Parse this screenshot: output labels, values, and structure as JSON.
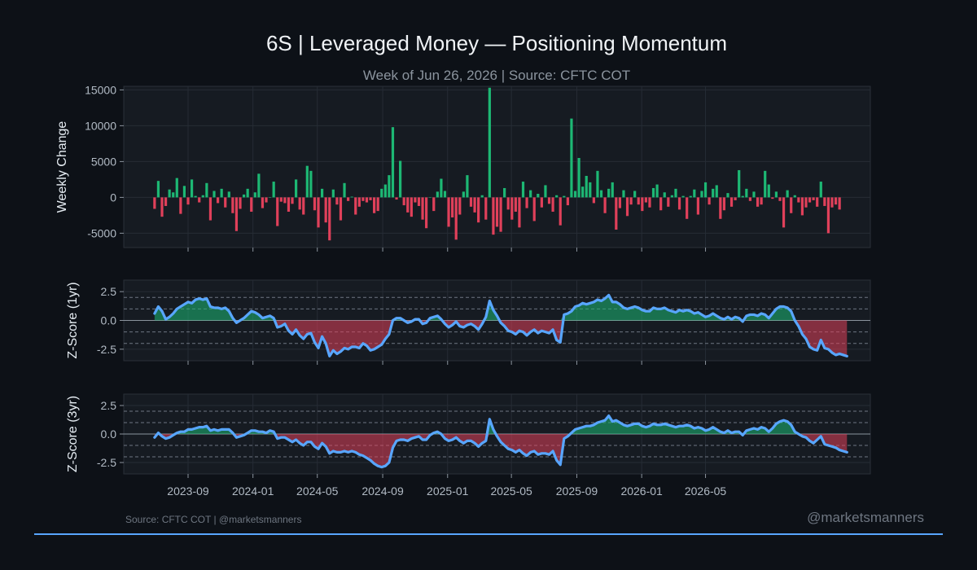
{
  "header": {
    "title": "6S | Leveraged Money — Positioning Momentum",
    "subtitle": "Week of Jun 26, 2026 | Source: CFTC COT"
  },
  "footer": {
    "source": "Source: CFTC COT | @marketsmanners",
    "watermark": "@marketsmanners"
  },
  "colors": {
    "background": "#0d1117",
    "panel": "#161b22",
    "positive": "#1db874",
    "negative": "#e0405a",
    "line": "#58a6ff"
  },
  "chart_data": [
    {
      "type": "bar",
      "ylabel": "Weekly Change",
      "ylim": [
        -7000,
        15500
      ],
      "yticks": [
        15000,
        10000,
        5000,
        0,
        -5000
      ],
      "ytick_labels": [
        "15000",
        "10000",
        "5000",
        "0",
        "-5000"
      ],
      "x_start": "2023-06-30",
      "x_step_days": 7,
      "values": [
        -1600,
        2300,
        -2700,
        -1200,
        1100,
        700,
        2700,
        -2300,
        1600,
        -1000,
        2500,
        200,
        -700,
        300,
        2000,
        -3200,
        900,
        -800,
        1200,
        -1400,
        800,
        -2200,
        -4700,
        -1600,
        400,
        1200,
        -2000,
        700,
        3300,
        -1500,
        -700,
        0,
        2200,
        -4000,
        -600,
        -800,
        -2000,
        -900,
        2500,
        -1700,
        -2400,
        4400,
        3700,
        -1800,
        -4200,
        1200,
        -3500,
        -6000,
        1100,
        -1000,
        -3200,
        2000,
        -500,
        100,
        -2400,
        -1300,
        -500,
        -700,
        -400,
        -2200,
        -1900,
        1200,
        1800,
        3100,
        9800,
        -300,
        5100,
        -1100,
        -2100,
        -2700,
        -700,
        -1200,
        -3100,
        -4300,
        0,
        -1900,
        800,
        2600,
        900,
        -4100,
        -2800,
        -5900,
        -2400,
        800,
        3100,
        -1300,
        -2100,
        -3500,
        300,
        -3100,
        15300,
        -5200,
        -4100,
        -4800,
        1300,
        -1700,
        -3100,
        -2000,
        -4200,
        2200,
        -1500,
        1000,
        -3300,
        500,
        -1400,
        1700,
        -900,
        -2000,
        300,
        -3900,
        200,
        -1100,
        11000,
        900,
        5500,
        1500,
        3000,
        2100,
        -800,
        3700,
        1000,
        -2200,
        1200,
        2100,
        -4500,
        -1500,
        1000,
        -2600,
        -1000,
        900,
        -1000,
        -1900,
        -700,
        -1400,
        1300,
        1800,
        -1800,
        700,
        -1300,
        300,
        1200,
        -1700,
        200,
        -3000,
        200,
        1100,
        -2400,
        900,
        2100,
        -1000,
        1200,
        1700,
        -3000,
        -1800,
        600,
        -1300,
        -400,
        3800,
        200,
        1200,
        -500,
        800,
        -1300,
        -1000,
        3700,
        1800,
        -200,
        800,
        -500,
        -4200,
        1000,
        -2200,
        300,
        -700,
        -2500,
        -1400,
        -700,
        -400,
        -1300,
        2200,
        -1200,
        -5000,
        -1400,
        -1000,
        -1700
      ]
    },
    {
      "type": "line",
      "ylabel": "Z-Score (1yr)",
      "ylim": [
        -3.5,
        3.5
      ],
      "yticks": [
        2.5,
        0.0,
        -2.5
      ],
      "ytick_labels": [
        "2.5",
        "0.0",
        "-2.5"
      ],
      "reference_lines": [
        2,
        1,
        -1,
        -2
      ],
      "x_start": "2023-06-30",
      "x_step_days": 7,
      "values": [
        0.6,
        1.2,
        0.8,
        0.1,
        0.3,
        0.6,
        1.0,
        1.2,
        1.4,
        1.6,
        1.5,
        1.8,
        1.9,
        1.8,
        1.9,
        1.2,
        1.1,
        1.1,
        1.0,
        1.1,
        0.8,
        0.2,
        -0.2,
        0.0,
        0.2,
        0.5,
        0.8,
        0.7,
        0.5,
        0.2,
        0.3,
        0.4,
        0.2,
        -0.6,
        -0.5,
        -0.3,
        -0.9,
        -1.2,
        -0.8,
        -1.3,
        -1.6,
        -1.2,
        -1.1,
        -1.9,
        -2.4,
        -1.4,
        -2.0,
        -3.1,
        -2.6,
        -2.9,
        -2.7,
        -2.4,
        -2.5,
        -2.3,
        -2.3,
        -2.4,
        -2.0,
        -2.2,
        -2.6,
        -2.5,
        -2.3,
        -2.1,
        -1.6,
        -1.2,
        0.0,
        0.2,
        0.2,
        0.0,
        -0.2,
        -0.1,
        0.1,
        0.1,
        -0.3,
        -0.2,
        0.2,
        0.3,
        0.4,
        0.1,
        -0.3,
        -0.6,
        -0.4,
        -0.1,
        -0.5,
        -0.6,
        -0.4,
        -0.3,
        -0.5,
        -0.8,
        -0.3,
        0.3,
        1.7,
        0.9,
        0.4,
        -0.2,
        -0.5,
        -0.9,
        -1.0,
        -1.2,
        -0.9,
        -1.0,
        -1.3,
        -1.0,
        -0.8,
        -1.1,
        -0.9,
        -1.0,
        -1.1,
        -0.8,
        -1.7,
        -1.9,
        0.5,
        0.6,
        0.8,
        1.2,
        1.3,
        1.5,
        1.4,
        1.5,
        1.6,
        1.8,
        1.7,
        1.9,
        2.2,
        1.6,
        1.6,
        1.4,
        1.1,
        1.0,
        1.1,
        1.2,
        1.1,
        0.9,
        0.8,
        0.8,
        1.1,
        1.0,
        1.0,
        1.1,
        0.9,
        0.8,
        0.7,
        0.9,
        0.8,
        0.9,
        0.8,
        0.6,
        0.7,
        0.5,
        0.3,
        0.4,
        0.6,
        0.4,
        0.2,
        0.1,
        0.3,
        0.1,
        0.3,
        0.2,
        -0.1,
        0.4,
        0.5,
        0.5,
        0.4,
        0.6,
        0.5,
        0.2,
        0.6,
        1.0,
        1.2,
        1.2,
        1.1,
        0.8,
        0.0,
        -0.5,
        -1.2,
        -1.6,
        -2.3,
        -2.5,
        -2.6,
        -1.7,
        -2.4,
        -2.5,
        -2.8,
        -3.0,
        -2.9,
        -3.0,
        -3.1
      ]
    },
    {
      "type": "line",
      "ylabel": "Z-Score (3yr)",
      "ylim": [
        -3.5,
        3.5
      ],
      "yticks": [
        2.5,
        0.0,
        -2.5
      ],
      "ytick_labels": [
        "2.5",
        "0.0",
        "-2.5"
      ],
      "reference_lines": [
        2,
        1,
        -1,
        -2
      ],
      "x_start": "2023-06-30",
      "x_step_days": 7,
      "values": [
        -0.3,
        0.1,
        -0.2,
        -0.4,
        -0.3,
        -0.1,
        0.1,
        0.2,
        0.2,
        0.4,
        0.4,
        0.5,
        0.6,
        0.6,
        0.7,
        0.3,
        0.4,
        0.3,
        0.4,
        0.4,
        0.4,
        0.1,
        -0.3,
        -0.2,
        -0.1,
        0.1,
        0.3,
        0.3,
        0.2,
        0.2,
        0.1,
        0.3,
        0.2,
        -0.4,
        -0.3,
        -0.3,
        -0.5,
        -0.7,
        -0.5,
        -0.8,
        -1.0,
        -0.7,
        -0.7,
        -1.1,
        -1.3,
        -0.8,
        -1.1,
        -1.7,
        -1.5,
        -1.6,
        -1.6,
        -1.5,
        -1.6,
        -1.5,
        -1.6,
        -1.8,
        -1.9,
        -2.1,
        -2.3,
        -2.6,
        -2.8,
        -2.9,
        -2.8,
        -2.5,
        -1.2,
        -0.6,
        -0.5,
        -0.5,
        -0.6,
        -0.4,
        -0.3,
        -0.2,
        -0.5,
        -0.5,
        -0.1,
        0.1,
        0.2,
        0.0,
        -0.4,
        -0.6,
        -0.5,
        -0.3,
        -0.6,
        -0.8,
        -0.6,
        -0.6,
        -0.8,
        -1.1,
        -0.8,
        -0.6,
        1.3,
        0.4,
        -0.2,
        -0.7,
        -1.0,
        -1.3,
        -1.4,
        -1.6,
        -1.4,
        -1.7,
        -1.9,
        -1.6,
        -1.5,
        -1.8,
        -1.7,
        -1.7,
        -1.8,
        -1.5,
        -2.3,
        -2.7,
        -0.4,
        -0.2,
        0.1,
        0.4,
        0.5,
        0.6,
        0.7,
        0.7,
        0.8,
        1.0,
        1.1,
        1.2,
        1.6,
        1.1,
        1.2,
        1.0,
        0.8,
        0.7,
        0.8,
        0.9,
        0.9,
        0.7,
        0.6,
        0.7,
        0.9,
        0.8,
        0.8,
        0.9,
        0.8,
        0.7,
        0.6,
        0.7,
        0.7,
        0.8,
        0.7,
        0.5,
        0.6,
        0.5,
        0.3,
        0.4,
        0.6,
        0.4,
        0.2,
        0.1,
        0.3,
        0.1,
        0.2,
        0.2,
        -0.1,
        0.3,
        0.4,
        0.5,
        0.4,
        0.6,
        0.5,
        0.2,
        0.5,
        0.9,
        1.1,
        1.2,
        1.1,
        0.8,
        0.2,
        0.0,
        -0.2,
        -0.3,
        -0.6,
        -0.8,
        -0.5,
        -0.2,
        -0.9,
        -1.0,
        -1.1,
        -1.2,
        -1.4,
        -1.5,
        -1.6
      ]
    }
  ],
  "x_axis": {
    "tick_labels": [
      "2023-09",
      "2024-01",
      "2024-05",
      "2024-09",
      "2025-01",
      "2025-05",
      "2025-09",
      "2026-01",
      "2026-05"
    ],
    "tick_dates": [
      "2023-09-01",
      "2024-01-01",
      "2024-05-01",
      "2024-09-01",
      "2025-01-01",
      "2025-05-01",
      "2025-09-01",
      "2026-01-01",
      "2026-05-01"
    ]
  }
}
